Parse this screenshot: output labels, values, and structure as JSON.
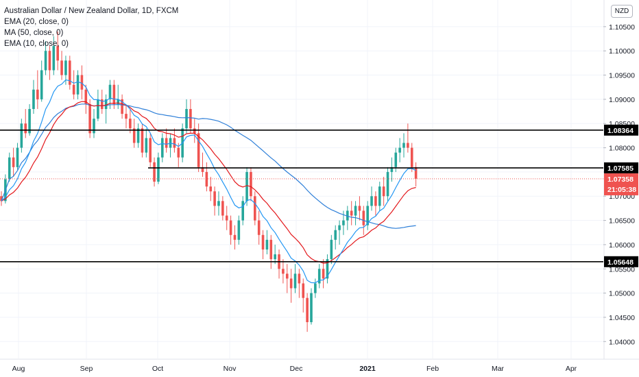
{
  "legend": {
    "title": "Australian Dollar / New Zealand Dollar, 1D, FXCM",
    "ind1": "EMA (20, close, 0)",
    "ind2": "MA (50, close, 0)",
    "ind3": "EMA (10, close, 0)"
  },
  "currency": "NZD",
  "colors": {
    "up": "#26a69a",
    "down": "#ef5350",
    "ema10": "#2196f3",
    "ema20": "#e3171b",
    "ma50": "#2e7fd8",
    "level": "#000000"
  },
  "chart_data": {
    "type": "candlestick",
    "symbol": "AUDNZD",
    "ylim": [
      1.0365,
      1.1105
    ],
    "y_ticks": [
      "1.10500",
      "1.10000",
      "1.09500",
      "1.09000",
      "1.08500",
      "1.08000",
      "1.07500",
      "1.07000",
      "1.06500",
      "1.06000",
      "1.05500",
      "1.05000",
      "1.04500",
      "1.04000"
    ],
    "x_ticks": [
      "Aug",
      "Sep",
      "Oct",
      "Nov",
      "Dec",
      "2021",
      "Feb",
      "Mar",
      "Apr"
    ],
    "levels": [
      {
        "value": 1.08364,
        "label": "1.08364"
      },
      {
        "value": 1.07585,
        "label": "1.07585"
      },
      {
        "value": 1.05648,
        "label": "1.05648"
      }
    ],
    "last_price": {
      "value": 1.07358,
      "label": "1.07358",
      "countdown": "21:05:38"
    },
    "candles": [
      [
        1.07,
        1.071,
        1.068,
        1.069
      ],
      [
        1.069,
        1.0745,
        1.0685,
        1.0735
      ],
      [
        1.0735,
        1.079,
        1.073,
        1.078
      ],
      [
        1.078,
        1.08,
        1.074,
        1.076
      ],
      [
        1.076,
        1.081,
        1.0755,
        1.08
      ],
      [
        1.08,
        1.086,
        1.079,
        1.085
      ],
      [
        1.085,
        1.088,
        1.082,
        1.083
      ],
      [
        1.083,
        1.089,
        1.0825,
        1.088
      ],
      [
        1.088,
        1.094,
        1.087,
        1.092
      ],
      [
        1.092,
        1.096,
        1.088,
        1.09
      ],
      [
        1.09,
        1.098,
        1.0895,
        1.096
      ],
      [
        1.096,
        1.102,
        1.095,
        1.1
      ],
      [
        1.1,
        1.101,
        1.094,
        1.096
      ],
      [
        1.096,
        1.103,
        1.095,
        1.101
      ],
      [
        1.101,
        1.104,
        1.096,
        1.098
      ],
      [
        1.098,
        1.1,
        1.094,
        1.095
      ],
      [
        1.095,
        1.099,
        1.093,
        1.098
      ],
      [
        1.098,
        1.099,
        1.092,
        1.093
      ],
      [
        1.093,
        1.096,
        1.09,
        1.091
      ],
      [
        1.091,
        1.096,
        1.09,
        1.095
      ],
      [
        1.095,
        1.097,
        1.09,
        1.092
      ],
      [
        1.092,
        1.093,
        1.087,
        1.089
      ],
      [
        1.089,
        1.09,
        1.082,
        1.083
      ],
      [
        1.083,
        1.088,
        1.082,
        1.086
      ],
      [
        1.086,
        1.092,
        1.0855,
        1.09
      ],
      [
        1.09,
        1.092,
        1.087,
        1.088
      ],
      [
        1.088,
        1.091,
        1.085,
        1.09
      ],
      [
        1.09,
        1.094,
        1.088,
        1.093
      ],
      [
        1.093,
        1.094,
        1.088,
        1.089
      ],
      [
        1.089,
        1.093,
        1.088,
        1.09
      ],
      [
        1.09,
        1.091,
        1.086,
        1.087
      ],
      [
        1.087,
        1.089,
        1.084,
        1.086
      ],
      [
        1.086,
        1.088,
        1.083,
        1.084
      ],
      [
        1.084,
        1.086,
        1.08,
        1.081
      ],
      [
        1.081,
        1.085,
        1.08,
        1.084
      ],
      [
        1.084,
        1.085,
        1.078,
        1.079
      ],
      [
        1.079,
        1.084,
        1.078,
        1.082
      ],
      [
        1.082,
        1.083,
        1.076,
        1.077
      ],
      [
        1.077,
        1.078,
        1.072,
        1.073
      ],
      [
        1.073,
        1.079,
        1.0725,
        1.078
      ],
      [
        1.078,
        1.083,
        1.077,
        1.082
      ],
      [
        1.082,
        1.084,
        1.079,
        1.08
      ],
      [
        1.08,
        1.083,
        1.078,
        1.082
      ],
      [
        1.082,
        1.084,
        1.079,
        1.08
      ],
      [
        1.08,
        1.081,
        1.076,
        1.078
      ],
      [
        1.078,
        1.085,
        1.077,
        1.084
      ],
      [
        1.084,
        1.09,
        1.083,
        1.088
      ],
      [
        1.088,
        1.09,
        1.083,
        1.084
      ],
      [
        1.084,
        1.086,
        1.081,
        1.083
      ],
      [
        1.083,
        1.085,
        1.075,
        1.076
      ],
      [
        1.076,
        1.079,
        1.074,
        1.075
      ],
      [
        1.075,
        1.077,
        1.071,
        1.072
      ],
      [
        1.072,
        1.074,
        1.069,
        1.071
      ],
      [
        1.071,
        1.072,
        1.066,
        1.068
      ],
      [
        1.068,
        1.071,
        1.066,
        1.069
      ],
      [
        1.069,
        1.07,
        1.065,
        1.066
      ],
      [
        1.066,
        1.068,
        1.063,
        1.065
      ],
      [
        1.065,
        1.066,
        1.06,
        1.062
      ],
      [
        1.062,
        1.064,
        1.059,
        1.061
      ],
      [
        1.061,
        1.066,
        1.06,
        1.065
      ],
      [
        1.065,
        1.07,
        1.064,
        1.069
      ],
      [
        1.069,
        1.076,
        1.068,
        1.075
      ],
      [
        1.075,
        1.076,
        1.069,
        1.07
      ],
      [
        1.07,
        1.071,
        1.064,
        1.065
      ],
      [
        1.065,
        1.067,
        1.06,
        1.062
      ],
      [
        1.062,
        1.063,
        1.057,
        1.059
      ],
      [
        1.059,
        1.063,
        1.058,
        1.061
      ],
      [
        1.061,
        1.062,
        1.055,
        1.057
      ],
      [
        1.057,
        1.06,
        1.056,
        1.058
      ],
      [
        1.058,
        1.059,
        1.053,
        1.055
      ],
      [
        1.055,
        1.057,
        1.052,
        1.054
      ],
      [
        1.054,
        1.056,
        1.05,
        1.053
      ],
      [
        1.053,
        1.055,
        1.048,
        1.051
      ],
      [
        1.051,
        1.056,
        1.05,
        1.054
      ],
      [
        1.054,
        1.055,
        1.049,
        1.052
      ],
      [
        1.052,
        1.053,
        1.046,
        1.049
      ],
      [
        1.049,
        1.05,
        1.042,
        1.044
      ],
      [
        1.044,
        1.051,
        1.0435,
        1.05
      ],
      [
        1.05,
        1.053,
        1.049,
        1.052
      ],
      [
        1.052,
        1.056,
        1.051,
        1.055
      ],
      [
        1.055,
        1.057,
        1.051,
        1.053
      ],
      [
        1.053,
        1.058,
        1.052,
        1.057
      ],
      [
        1.057,
        1.062,
        1.056,
        1.061
      ],
      [
        1.061,
        1.064,
        1.059,
        1.063
      ],
      [
        1.063,
        1.065,
        1.06,
        1.064
      ],
      [
        1.064,
        1.067,
        1.062,
        1.065
      ],
      [
        1.065,
        1.068,
        1.063,
        1.067
      ],
      [
        1.067,
        1.069,
        1.064,
        1.066
      ],
      [
        1.066,
        1.069,
        1.064,
        1.068
      ],
      [
        1.068,
        1.07,
        1.065,
        1.067
      ],
      [
        1.067,
        1.068,
        1.062,
        1.064
      ],
      [
        1.064,
        1.069,
        1.063,
        1.068
      ],
      [
        1.068,
        1.072,
        1.067,
        1.07
      ],
      [
        1.07,
        1.071,
        1.066,
        1.068
      ],
      [
        1.068,
        1.073,
        1.067,
        1.072
      ],
      [
        1.072,
        1.074,
        1.068,
        1.07
      ],
      [
        1.07,
        1.076,
        1.069,
        1.075
      ],
      [
        1.075,
        1.078,
        1.073,
        1.076
      ],
      [
        1.076,
        1.08,
        1.075,
        1.079
      ],
      [
        1.079,
        1.082,
        1.077,
        1.08
      ],
      [
        1.08,
        1.083,
        1.078,
        1.081
      ],
      [
        1.081,
        1.085,
        1.079,
        1.08
      ],
      [
        1.08,
        1.081,
        1.075,
        1.076
      ],
      [
        1.076,
        1.077,
        1.072,
        1.0736
      ]
    ],
    "ema10_color": "#2196f3",
    "ema20_color": "#e3171b",
    "ma50_color": "#2e7fd8"
  }
}
